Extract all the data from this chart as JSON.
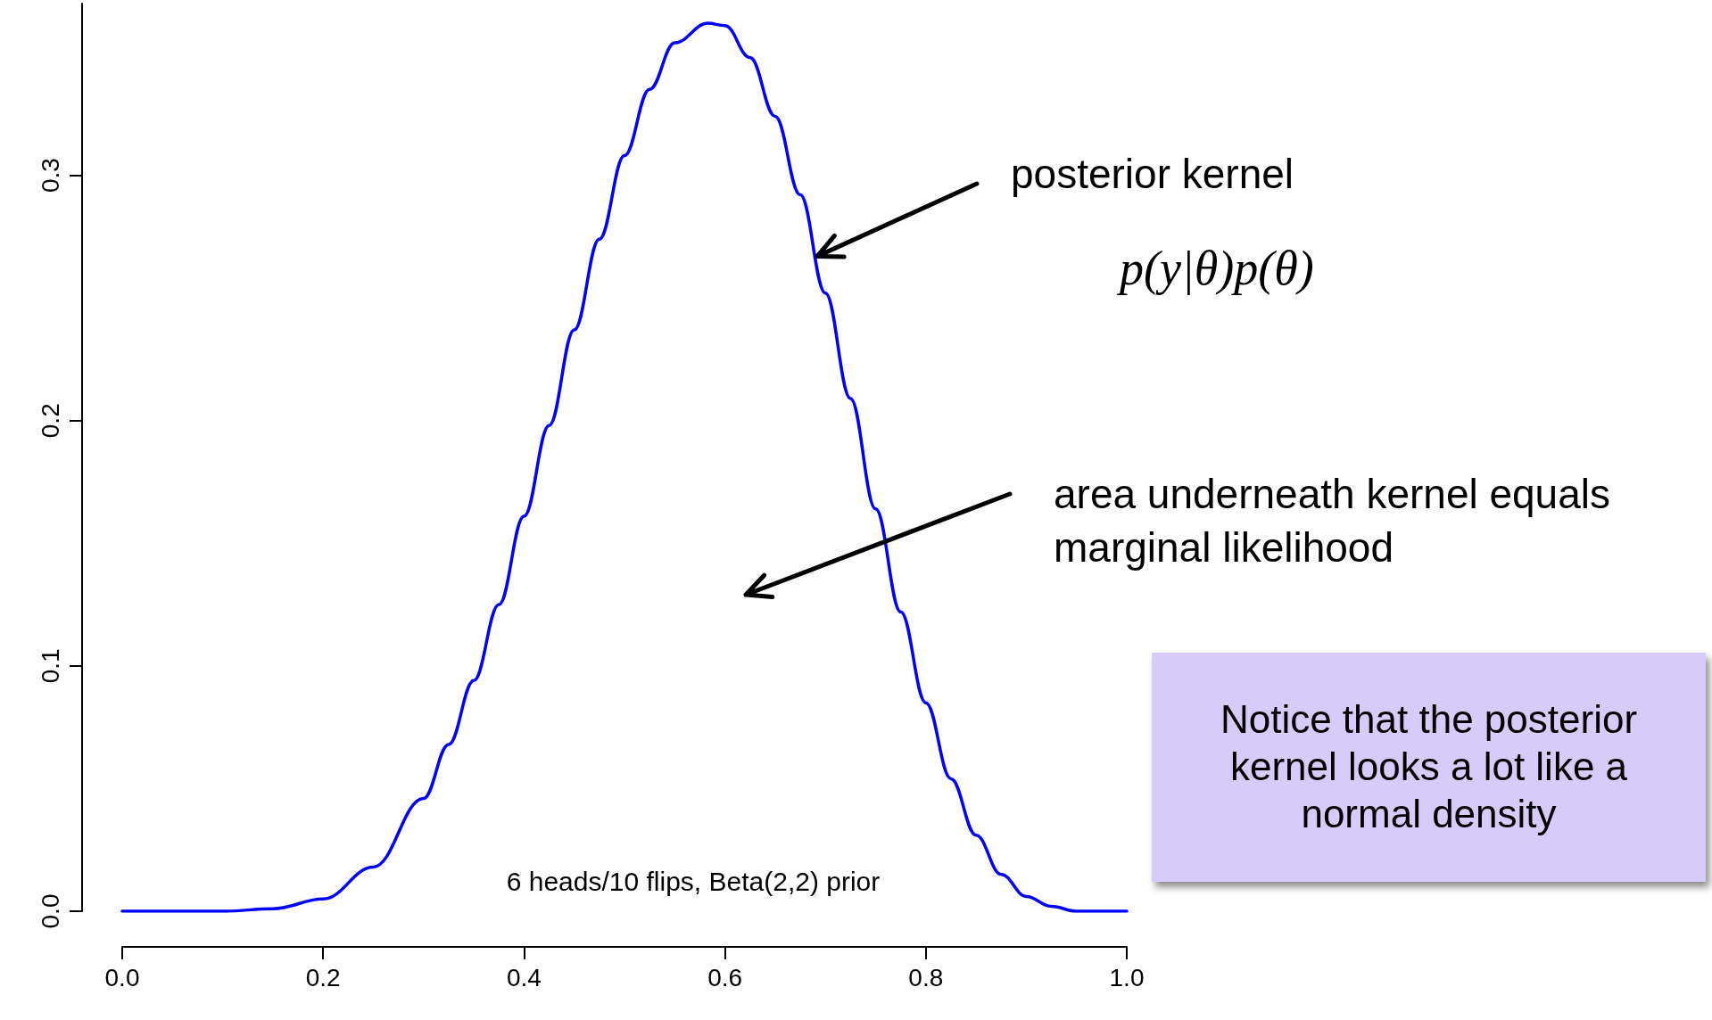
{
  "chart_data": {
    "type": "line",
    "x": [
      0,
      0.05,
      0.1,
      0.15,
      0.2,
      0.25,
      0.3,
      0.325,
      0.35,
      0.375,
      0.4,
      0.425,
      0.45,
      0.475,
      0.5,
      0.525,
      0.55,
      0.583,
      0.6,
      0.625,
      0.65,
      0.675,
      0.7,
      0.725,
      0.75,
      0.775,
      0.8,
      0.825,
      0.85,
      0.875,
      0.9,
      0.925,
      0.95,
      1
    ],
    "series": [
      {
        "color": "#0000ff",
        "values": [
          0,
          0,
          0,
          0.001,
          0.005,
          0.018,
          0.046,
          0.068,
          0.094,
          0.125,
          0.161,
          0.198,
          0.237,
          0.274,
          0.308,
          0.335,
          0.354,
          0.362,
          0.361,
          0.348,
          0.324,
          0.292,
          0.252,
          0.209,
          0.164,
          0.122,
          0.085,
          0.054,
          0.031,
          0.015,
          0.006,
          0.002,
          0,
          0
        ]
      }
    ],
    "xlim": [
      0,
      1
    ],
    "xticks": [
      {
        "value": 0,
        "label": "0.0"
      },
      0.2,
      0.4,
      0.6,
      0.8,
      {
        "value": 1,
        "label": "1.0"
      }
    ],
    "ylim": [
      0,
      0.37
    ],
    "yticks": [
      {
        "value": 0,
        "label": "0.0"
      },
      0.1,
      0.2,
      0.3
    ],
    "annotations": [
      {
        "text": "posterior kernel",
        "x": 0.692,
        "y": 0.267
      },
      "p(y|θ)p(θ)",
      "area underneath kernel equals marginal likelihood",
      "6 heads/10 flips, Beta(2,2) prior",
      "Notice that the posterior kernel looks a lot like a normal density"
    ]
  }
}
